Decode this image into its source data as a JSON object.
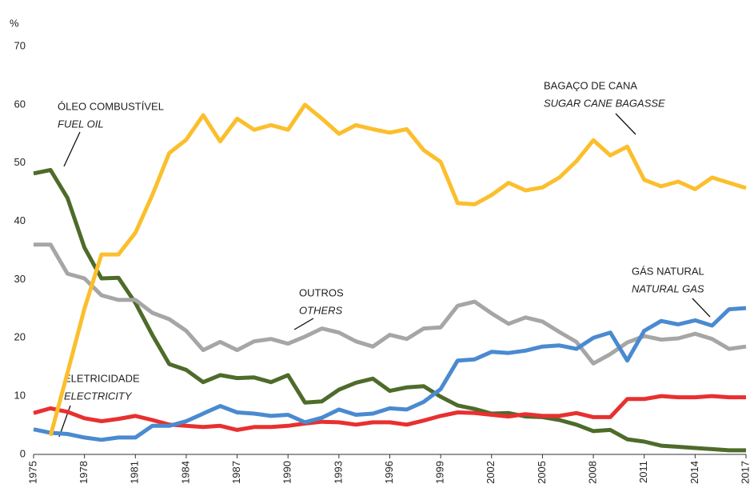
{
  "chart_data": {
    "type": "line",
    "y_unit": "%",
    "x": [
      1975,
      1976,
      1977,
      1978,
      1979,
      1980,
      1981,
      1982,
      1983,
      1984,
      1985,
      1986,
      1987,
      1988,
      1989,
      1990,
      1991,
      1992,
      1993,
      1994,
      1995,
      1996,
      1997,
      1998,
      1999,
      2000,
      2001,
      2002,
      2003,
      2004,
      2005,
      2006,
      2007,
      2008,
      2009,
      2010,
      2011,
      2012,
      2013,
      2014,
      2015,
      2016,
      2017
    ],
    "xlim": [
      1975,
      2017
    ],
    "xticks": [
      1975,
      1978,
      1981,
      1984,
      1987,
      1990,
      1993,
      1996,
      1999,
      2002,
      2005,
      2008,
      2011,
      2014,
      2017
    ],
    "ylim": [
      0,
      70
    ],
    "yticks": [
      0,
      10,
      20,
      30,
      40,
      50,
      60,
      70
    ],
    "grid": false,
    "series": [
      {
        "name": "ÓLEO COMBUSTÍVEL",
        "name_en": "FUEL OIL",
        "color": "#4e6b2a",
        "values": [
          48.2,
          48.8,
          44,
          35.5,
          30.2,
          30.3,
          26,
          20.5,
          15.5,
          14.5,
          12.4,
          13.6,
          13.1,
          13.2,
          12.4,
          13.6,
          8.9,
          9.1,
          11.1,
          12.3,
          13,
          10.9,
          11.5,
          11.7,
          9.9,
          8.4,
          7.8,
          7,
          7.1,
          6.5,
          6.4,
          5.9,
          5.1,
          4,
          4.2,
          2.6,
          2.2,
          1.5,
          1.3,
          1.1,
          0.9,
          0.7,
          0.7
        ]
      },
      {
        "name": "OUTROS",
        "name_en": "OTHERS",
        "color": "#a6a6a6",
        "values": [
          36,
          36,
          31,
          30.2,
          27.3,
          26.5,
          26.5,
          24.3,
          23.2,
          21.2,
          17.9,
          19.3,
          17.9,
          19.4,
          19.8,
          19,
          20.2,
          21.6,
          20.9,
          19.4,
          18.5,
          20.5,
          19.8,
          21.6,
          21.8,
          25.5,
          26.2,
          24.2,
          22.4,
          23.5,
          22.8,
          21,
          19.3,
          15.6,
          17.2,
          19.2,
          20.3,
          19.7,
          19.9,
          20.7,
          19.8,
          18.1,
          18.5
        ]
      },
      {
        "name": "ELETRICIDADE",
        "name_en": "ELECTRICITY",
        "color": "#e83030",
        "values": [
          7.1,
          7.9,
          7.3,
          6.2,
          5.7,
          6.1,
          6.6,
          5.9,
          5.1,
          4.9,
          4.7,
          4.9,
          4.2,
          4.7,
          4.7,
          4.9,
          5.3,
          5.6,
          5.5,
          5.1,
          5.5,
          5.5,
          5.1,
          5.8,
          6.6,
          7.2,
          7.1,
          6.8,
          6.5,
          6.9,
          6.6,
          6.6,
          7.1,
          6.4,
          6.4,
          9.5,
          9.5,
          10,
          9.8,
          9.8,
          10,
          9.8,
          9.8
        ]
      },
      {
        "name": "GÁS NATURAL",
        "name_en": "NATURAL GAS",
        "color": "#4a8ad0",
        "values": [
          4.3,
          3.7,
          3.5,
          2.9,
          2.5,
          2.9,
          2.9,
          4.9,
          4.9,
          5.7,
          7,
          8.3,
          7.2,
          7,
          6.6,
          6.8,
          5.5,
          6.3,
          7.7,
          6.8,
          7,
          7.9,
          7.7,
          9,
          11.2,
          16.1,
          16.3,
          17.6,
          17.4,
          17.8,
          18.5,
          18.7,
          18.1,
          20,
          20.9,
          16.1,
          21.2,
          22.9,
          22.3,
          23,
          22.1,
          24.9,
          25.1
        ]
      },
      {
        "name": "BAGAÇO DE CANA",
        "name_en": "SUGAR CANE BAGASSE",
        "color": "#fbbf2d",
        "values": [
          null,
          3.2,
          14,
          25,
          34.3,
          34.3,
          38,
          44.5,
          51.7,
          54,
          58.2,
          53.7,
          57.6,
          55.7,
          56.5,
          55.7,
          60,
          57.6,
          55,
          56.5,
          55.8,
          55.2,
          55.8,
          52.2,
          50.2,
          43.1,
          42.9,
          44.5,
          46.6,
          45.3,
          45.8,
          47.5,
          50.3,
          53.9,
          51.3,
          52.8,
          47.1,
          46,
          46.8,
          45.5,
          47.5,
          46.6,
          45.7
        ]
      }
    ]
  }
}
